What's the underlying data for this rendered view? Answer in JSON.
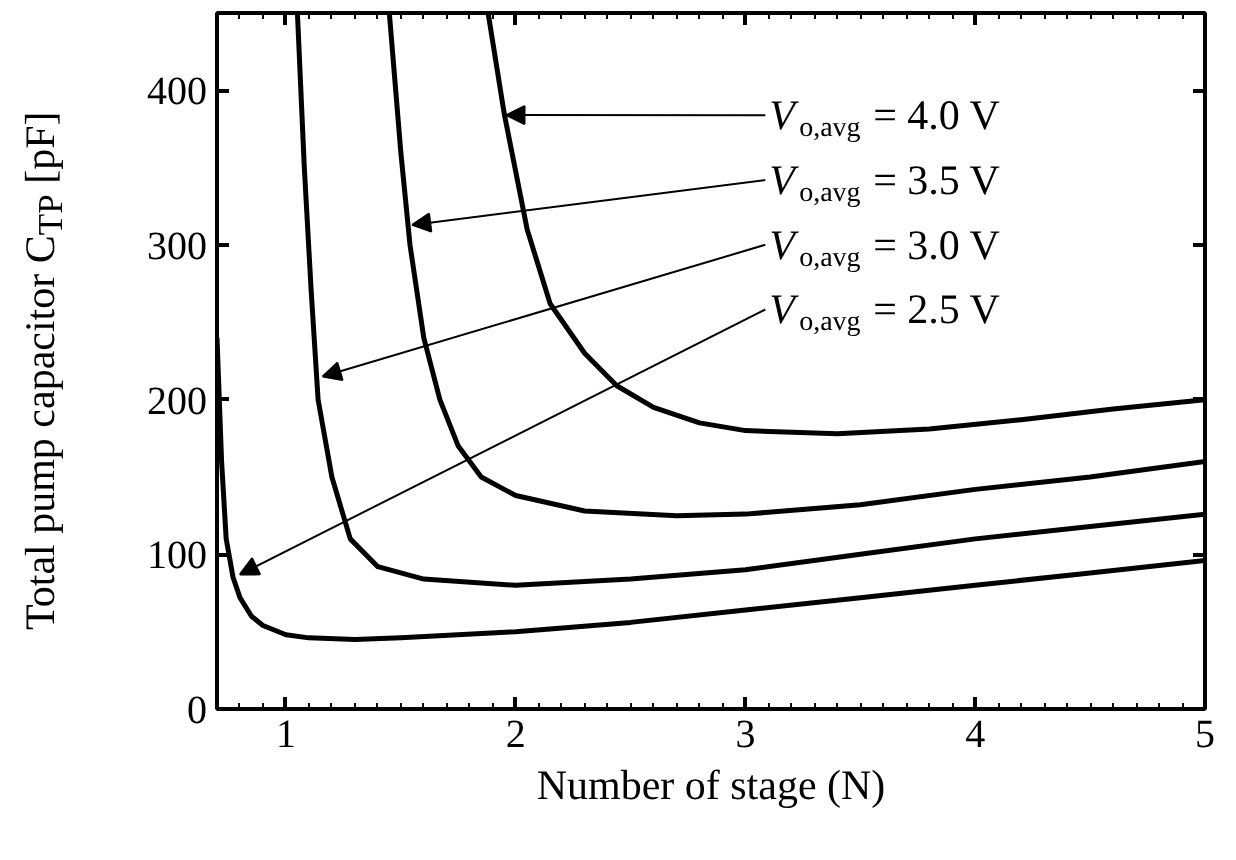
{
  "chart_data": {
    "type": "line",
    "xlabel": "Number of stage (N)",
    "ylabel": "Total pump capacitor C$_{TP}$ [pF]",
    "xlim": [
      0.7,
      5
    ],
    "ylim": [
      0,
      450
    ],
    "xticks": [
      1,
      2,
      3,
      4,
      5
    ],
    "yticks": [
      0,
      100,
      200,
      300,
      400
    ],
    "grid": false,
    "marker": "none",
    "line_style": "solid",
    "series": [
      {
        "color": "#000000",
        "x": [
          0.7,
          0.72,
          0.74,
          0.77,
          0.8,
          0.85,
          0.9,
          1.0,
          1.1,
          1.3,
          1.5,
          2,
          2.5,
          3,
          3.5,
          4,
          4.5,
          5
        ],
        "values": [
          240,
          160,
          110,
          85,
          72,
          60,
          54,
          48,
          46,
          45,
          46,
          50,
          56,
          64,
          72,
          80,
          88,
          96
        ]
      },
      {
        "color": "#000000",
        "x": [
          1.05,
          1.08,
          1.11,
          1.14,
          1.2,
          1.28,
          1.4,
          1.6,
          2,
          2.5,
          3,
          3.5,
          4,
          4.5,
          5
        ],
        "values": [
          450,
          350,
          270,
          200,
          150,
          110,
          92,
          84,
          80,
          84,
          90,
          100,
          110,
          118,
          126
        ]
      },
      {
        "color": "#000000",
        "x": [
          1.45,
          1.5,
          1.54,
          1.6,
          1.67,
          1.75,
          1.85,
          2,
          2.3,
          2.7,
          3,
          3.5,
          4,
          4.5,
          5
        ],
        "values": [
          450,
          360,
          300,
          240,
          200,
          170,
          150,
          138,
          128,
          125,
          126,
          132,
          142,
          150,
          160
        ]
      },
      {
        "color": "#000000",
        "x": [
          1.88,
          1.95,
          2.05,
          2.15,
          2.3,
          2.44,
          2.6,
          2.8,
          3.0,
          3.4,
          3.8,
          4.2,
          4.6,
          5
        ],
        "values": [
          450,
          385,
          310,
          262,
          230,
          209,
          195,
          185,
          180,
          178,
          181,
          187,
          194,
          200
        ]
      }
    ],
    "annotations": [
      {
        "text": "V$_{o,avg}$ = 4.0 V",
        "x": 1.96,
        "y": 384
      },
      {
        "text": "V$_{o,avg}$ = 3.5 V",
        "x": 1.55,
        "y": 313
      },
      {
        "text": "V$_{o,avg}$ = 3.0 V",
        "x": 1.16,
        "y": 215
      },
      {
        "text": "V$_{o,avg}$ = 2.5 V",
        "x": 0.8,
        "y": 87
      }
    ]
  }
}
